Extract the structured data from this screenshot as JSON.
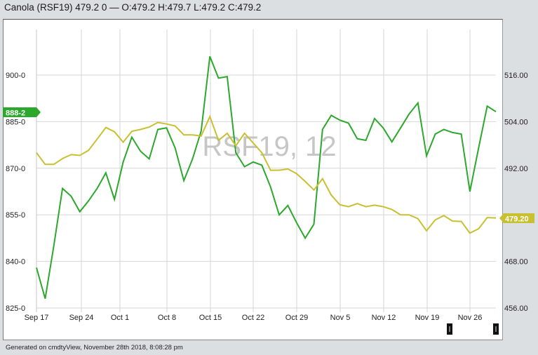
{
  "header": {
    "title": "Canola (RSF19) 479.2 0 — O:479.2 H:479.7 L:479.2 C:479.2"
  },
  "watermark": "RSF19, 12",
  "footer": {
    "text": "Generated on cmdtyView, November 28th 2018, 8:08:28 pm"
  },
  "colors": {
    "series_green": "#2ca82c",
    "series_yellow": "#c8c030",
    "grid": "#d6d6d6",
    "background": "#dcdfe2"
  },
  "labels": {
    "left_last_value": "888-2",
    "right_last_value": "479.20"
  },
  "chart_data": {
    "type": "line",
    "title": "Canola (RSF19) 479.2 0 — O:479.2 H:479.7 L:479.2 C:479.2",
    "xlabel": "",
    "ylabel_left": "",
    "ylabel_right": "",
    "x_tick_labels": [
      "Sep 17",
      "Sep 24",
      "Oct 1",
      "Oct 8",
      "Oct 15",
      "Oct 22",
      "Oct 29",
      "Nov 5",
      "Nov 12",
      "Nov 19",
      "Nov 26"
    ],
    "left_axis": {
      "ticks": [
        "900-0",
        "885-0",
        "870-0",
        "855-0",
        "840-0",
        "825-0"
      ],
      "range": [
        825,
        912
      ]
    },
    "right_axis": {
      "ticks": [
        "516.00",
        "504.00",
        "492.00",
        "468.00",
        "456.00"
      ],
      "range": [
        456,
        525.6
      ]
    },
    "grid": true,
    "legend": "none",
    "series": [
      {
        "name": "Green series (left axis, 888-2)",
        "axis": "left",
        "color": "#2ca82c",
        "last_label": "888-2",
        "values": [
          838,
          828,
          845,
          863.5,
          861,
          856,
          859.5,
          863.5,
          868.5,
          860,
          872,
          880,
          875.5,
          873,
          882.5,
          883,
          876.5,
          866,
          873,
          882,
          906,
          899,
          899.5,
          875,
          870.5,
          872,
          871,
          864,
          855,
          858,
          852.5,
          847.5,
          852,
          882.5,
          887,
          885.5,
          884.5,
          879.5,
          879,
          886,
          883,
          878.5,
          883,
          887.5,
          891,
          874,
          881,
          882.5,
          881.5,
          881,
          862.5,
          876.5,
          890,
          888.2
        ]
      },
      {
        "name": "Yellow series (right axis, 479.20)",
        "axis": "right",
        "color": "#c8c030",
        "last_label": "479.20",
        "values": [
          496,
          493,
          493,
          494.5,
          495.5,
          495.3,
          496.6,
          499.5,
          502.5,
          501.4,
          498.7,
          501.5,
          502,
          502.6,
          503.8,
          503.4,
          502.9,
          500.6,
          500.6,
          500.3,
          505.3,
          499.2,
          501,
          497.8,
          501,
          498.5,
          496,
          491.5,
          491.5,
          491.8,
          490.6,
          488.6,
          486.4,
          489.3,
          485.1,
          482.6,
          482.1,
          482.9,
          482.1,
          482.5,
          482.1,
          481.4,
          480,
          480,
          479,
          475.9,
          478.7,
          479.8,
          478.4,
          478.3,
          475.3,
          476.4,
          479.3,
          479.2
        ]
      }
    ]
  }
}
